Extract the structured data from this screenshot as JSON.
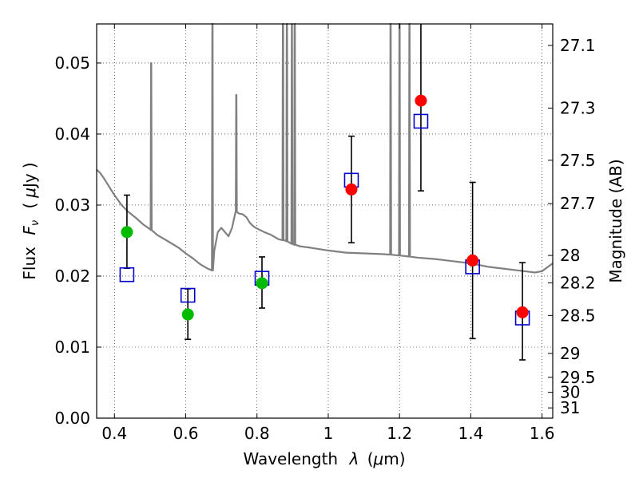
{
  "chart_data": {
    "type": "scatter",
    "title": "",
    "xlabel": "Wavelength  λ (μm)",
    "ylabel": "Flux  F_ν  ( μJy )",
    "y2label": "Magnitude (AB)",
    "xlim": [
      0.35,
      1.63
    ],
    "ylim": [
      0.0,
      0.0555
    ],
    "grid": true,
    "x_ticks": [
      0.4,
      0.6,
      0.8,
      1.0,
      1.2,
      1.4,
      1.6
    ],
    "x_tick_labels": [
      "0.4",
      "0.6",
      "0.8",
      "1",
      "1.2",
      "1.4",
      "1.6"
    ],
    "y_ticks": [
      0.0,
      0.01,
      0.02,
      0.03,
      0.04,
      0.05
    ],
    "y_tick_labels": [
      "0.00",
      "0.01",
      "0.02",
      "0.03",
      "0.04",
      "0.05"
    ],
    "mag_ticks": [
      27.1,
      27.3,
      27.5,
      27.7,
      28,
      28.2,
      28.5,
      29,
      29.5,
      30,
      31
    ],
    "mag_tick_labels": [
      "27.1",
      "27.3",
      "27.5",
      "27.7",
      "28",
      "28.2",
      "28.5",
      "29",
      "29.5",
      "30",
      "31"
    ],
    "colors": {
      "green": "#00bb00",
      "red": "#ff0000",
      "box": "#0000cc",
      "sed": "#808080",
      "errorbar": "#000000"
    },
    "measurements": [
      {
        "x": 0.435,
        "flux": 0.0262,
        "err_low": 0.0211,
        "err_high": 0.0314,
        "color": "green"
      },
      {
        "x": 0.606,
        "flux": 0.0146,
        "err_low": 0.0111,
        "err_high": 0.0182,
        "color": "green"
      },
      {
        "x": 0.814,
        "flux": 0.019,
        "err_low": 0.0155,
        "err_high": 0.0227,
        "color": "green"
      },
      {
        "x": 1.065,
        "flux": 0.0322,
        "err_low": 0.0247,
        "err_high": 0.0397,
        "color": "red"
      },
      {
        "x": 1.26,
        "flux": 0.0447,
        "err_low": 0.032,
        "err_high": 0.056,
        "color": "red"
      },
      {
        "x": 1.405,
        "flux": 0.0222,
        "err_low": 0.0112,
        "err_high": 0.0332,
        "color": "red"
      },
      {
        "x": 1.545,
        "flux": 0.0149,
        "err_low": 0.0082,
        "err_high": 0.0219,
        "color": "red"
      }
    ],
    "model_boxes": [
      {
        "x": 0.435,
        "flux": 0.0202
      },
      {
        "x": 0.606,
        "flux": 0.0173
      },
      {
        "x": 0.814,
        "flux": 0.0197
      },
      {
        "x": 1.065,
        "flux": 0.0335
      },
      {
        "x": 1.26,
        "flux": 0.0418
      },
      {
        "x": 1.405,
        "flux": 0.0213
      },
      {
        "x": 1.545,
        "flux": 0.0141
      }
    ],
    "sed_continuum": [
      [
        0.35,
        0.035
      ],
      [
        0.36,
        0.0345
      ],
      [
        0.37,
        0.0338
      ],
      [
        0.38,
        0.033
      ],
      [
        0.39,
        0.0322
      ],
      [
        0.4,
        0.0314
      ],
      [
        0.42,
        0.03
      ],
      [
        0.44,
        0.029
      ],
      [
        0.46,
        0.0282
      ],
      [
        0.48,
        0.0273
      ],
      [
        0.5,
        0.0266
      ],
      [
        0.52,
        0.0258
      ],
      [
        0.54,
        0.0252
      ],
      [
        0.56,
        0.0246
      ],
      [
        0.58,
        0.024
      ],
      [
        0.6,
        0.0232
      ],
      [
        0.62,
        0.0225
      ],
      [
        0.64,
        0.0217
      ],
      [
        0.66,
        0.0211
      ],
      [
        0.675,
        0.0208
      ],
      [
        0.68,
        0.0235
      ],
      [
        0.69,
        0.0262
      ],
      [
        0.7,
        0.0268
      ],
      [
        0.71,
        0.0262
      ],
      [
        0.72,
        0.0256
      ],
      [
        0.73,
        0.0268
      ],
      [
        0.74,
        0.0291
      ],
      [
        0.75,
        0.0288
      ],
      [
        0.76,
        0.0287
      ],
      [
        0.77,
        0.0283
      ],
      [
        0.78,
        0.0275
      ],
      [
        0.79,
        0.027
      ],
      [
        0.8,
        0.0267
      ],
      [
        0.82,
        0.0262
      ],
      [
        0.84,
        0.0258
      ],
      [
        0.86,
        0.0252
      ],
      [
        0.88,
        0.025
      ],
      [
        0.9,
        0.0245
      ],
      [
        0.92,
        0.0242
      ],
      [
        0.95,
        0.024
      ],
      [
        1.0,
        0.0236
      ],
      [
        1.05,
        0.0233
      ],
      [
        1.1,
        0.0232
      ],
      [
        1.15,
        0.0231
      ],
      [
        1.18,
        0.023
      ],
      [
        1.22,
        0.0228
      ],
      [
        1.25,
        0.0226
      ],
      [
        1.3,
        0.0224
      ],
      [
        1.35,
        0.0221
      ],
      [
        1.4,
        0.0218
      ],
      [
        1.45,
        0.0213
      ],
      [
        1.5,
        0.021
      ],
      [
        1.55,
        0.0207
      ],
      [
        1.58,
        0.0205
      ],
      [
        1.6,
        0.0207
      ],
      [
        1.63,
        0.0218
      ]
    ],
    "sed_lines": [
      {
        "x": 0.503,
        "peak": 0.05
      },
      {
        "x": 0.675,
        "peak": 0.0555
      },
      {
        "x": 0.742,
        "peak": 0.0455
      },
      {
        "x": 0.873,
        "peak": 0.0555
      },
      {
        "x": 0.884,
        "peak": 0.0555
      },
      {
        "x": 0.898,
        "peak": 0.0555
      },
      {
        "x": 0.906,
        "peak": 0.0555
      },
      {
        "x": 1.175,
        "peak": 0.0555
      },
      {
        "x": 1.2,
        "peak": 0.0555
      },
      {
        "x": 1.228,
        "peak": 0.0555
      }
    ]
  }
}
